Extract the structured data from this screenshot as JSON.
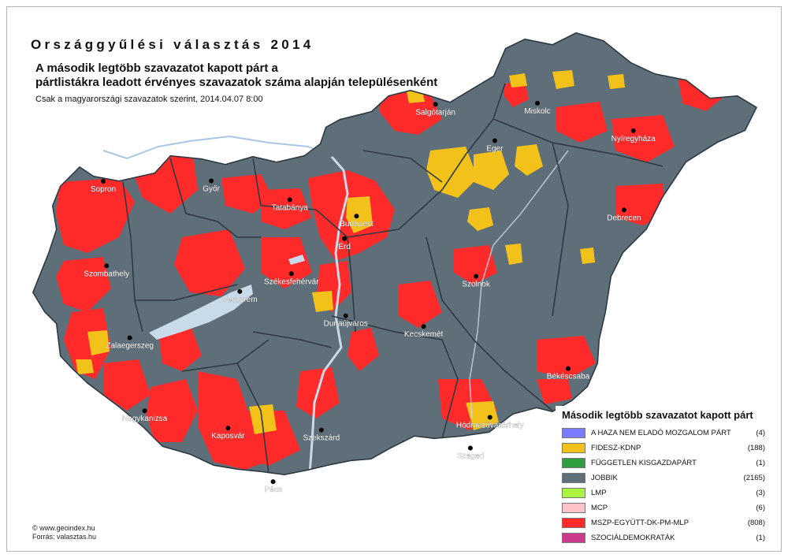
{
  "title": "Országgyűlési választás 2014",
  "subtitle_line1": "A második legtöbb szavazatot kapott párt a",
  "subtitle_line2": "pártlistákra leadott érvényes szavazatok száma alapján településenként",
  "note": "Csak a magyarországi szavazatok szerint, 2014.04.07 8:00",
  "credits": {
    "line1": "© www.geoindex.hu",
    "line2": "Forrás: valasztas.hu"
  },
  "colors": {
    "jobbik": "#5f6f79",
    "mszp": "#ff2a2a",
    "fidesz": "#f3c21a",
    "lake": "#c9daea",
    "border": "#2e3a42"
  },
  "cities": [
    {
      "name": "Sopron",
      "lat": 47.685,
      "lon": 16.59
    },
    {
      "name": "Győr",
      "lat": 47.687,
      "lon": 17.635
    },
    {
      "name": "Tatabánya",
      "lat": 47.586,
      "lon": 18.394
    },
    {
      "name": "Budapest",
      "lat": 47.498,
      "lon": 19.04
    },
    {
      "name": "Érd",
      "lat": 47.377,
      "lon": 18.923
    },
    {
      "name": "Salgótarján",
      "lat": 48.098,
      "lon": 19.804
    },
    {
      "name": "Eger",
      "lat": 47.903,
      "lon": 20.377
    },
    {
      "name": "Miskolc",
      "lat": 48.104,
      "lon": 20.79
    },
    {
      "name": "Nyíregyháza",
      "lat": 47.956,
      "lon": 21.717
    },
    {
      "name": "Debrecen",
      "lat": 47.531,
      "lon": 21.627
    },
    {
      "name": "Szombathely",
      "lat": 47.231,
      "lon": 16.622
    },
    {
      "name": "Székesfehérvár",
      "lat": 47.189,
      "lon": 18.41
    },
    {
      "name": "Veszprém",
      "lat": 47.093,
      "lon": 17.911
    },
    {
      "name": "Szolnok",
      "lat": 47.175,
      "lon": 20.196
    },
    {
      "name": "Dunaújváros",
      "lat": 46.963,
      "lon": 18.935
    },
    {
      "name": "Kecskemét",
      "lat": 46.906,
      "lon": 19.689
    },
    {
      "name": "Zalaegerszeg",
      "lat": 46.845,
      "lon": 16.847
    },
    {
      "name": "Békéscsaba",
      "lat": 46.68,
      "lon": 21.087
    },
    {
      "name": "Nagykanizsa",
      "lat": 46.453,
      "lon": 16.991
    },
    {
      "name": "Kaposvár",
      "lat": 46.36,
      "lon": 17.797
    },
    {
      "name": "Szekszárd",
      "lat": 46.35,
      "lon": 18.7
    },
    {
      "name": "Hódmezővásárhely",
      "lat": 46.418,
      "lon": 20.33
    },
    {
      "name": "Szeged",
      "lat": 46.253,
      "lon": 20.141
    },
    {
      "name": "Pécs",
      "lat": 46.073,
      "lon": 18.233
    }
  ],
  "legend": {
    "title": "Második legtöbb szavazatot kapott párt",
    "items": [
      {
        "label": "A HAZA NEM ELADÓ MOZGALOM PÁRT",
        "count": "(4)",
        "color": "#7b7bff"
      },
      {
        "label": "FIDESZ-KDNP",
        "count": "(188)",
        "color": "#f3c21a"
      },
      {
        "label": "FÜGGETLEN KISGAZDAPÁRT",
        "count": "(1)",
        "color": "#2e9e3e"
      },
      {
        "label": "JOBBIK",
        "count": "(2165)",
        "color": "#5f6f79"
      },
      {
        "label": "LMP",
        "count": "(3)",
        "color": "#a9f542"
      },
      {
        "label": "MCP",
        "count": "(6)",
        "color": "#ffc4c8"
      },
      {
        "label": "MSZP-EGYÜTT-DK-PM-MLP",
        "count": "(808)",
        "color": "#ff2a2a"
      },
      {
        "label": "SZOCIÁLDEMOKRATÁK",
        "count": "(1)",
        "color": "#cc3a8e"
      }
    ]
  }
}
